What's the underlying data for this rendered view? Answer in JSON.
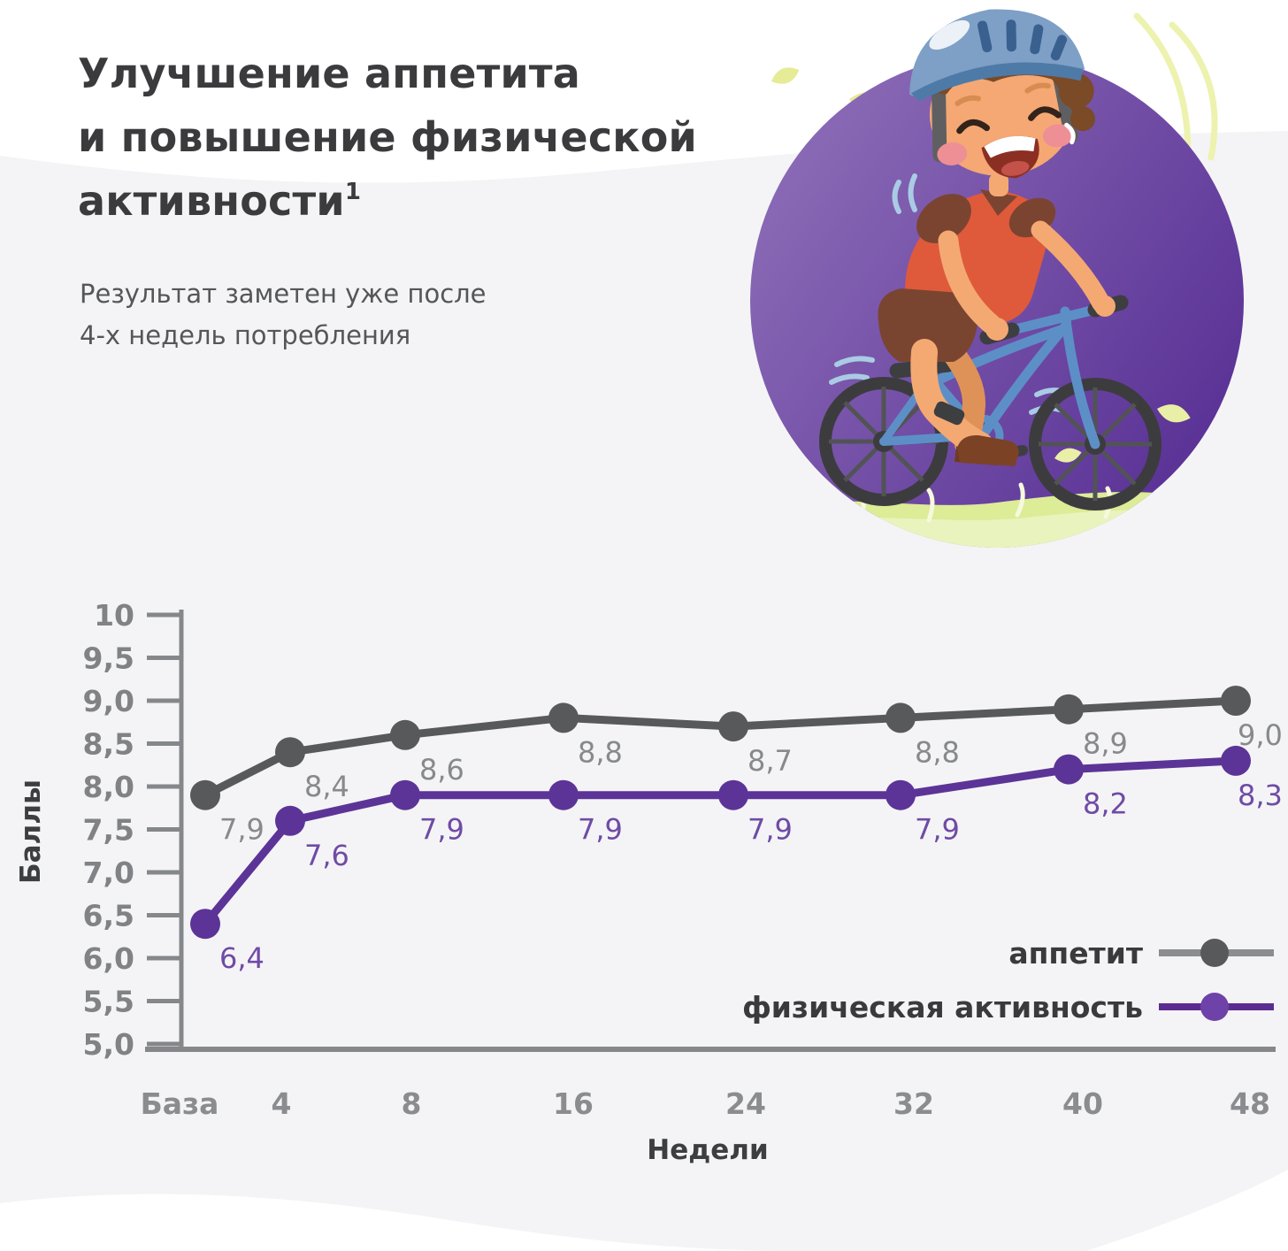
{
  "header": {
    "title": "Улучшение аппетита\nи повышение физической\nактивности",
    "title_superscript": "1",
    "subtitle": "Результат заметен уже после\n4-х недель потребления"
  },
  "illustration": {
    "name": "boy-riding-bicycle-in-purple-circle",
    "circle_color_light": "#9273bb",
    "circle_color_dark": "#5a3296"
  },
  "chart_data": {
    "type": "line",
    "title": "",
    "categories": [
      "База",
      "4",
      "8",
      "16",
      "24",
      "32",
      "40",
      "48"
    ],
    "series": [
      {
        "name": "аппетит",
        "color": "#58595b",
        "label_color": "#87898c",
        "legend_line_color": "#8b8d90",
        "legend_marker_color": "#58595b",
        "values": [
          7.9,
          8.4,
          8.6,
          8.8,
          8.7,
          8.8,
          8.9,
          9.0
        ],
        "value_labels": [
          "7,9",
          "8,4",
          "8,6",
          "8,8",
          "8,7",
          "8,8",
          "8,9",
          "9,0"
        ]
      },
      {
        "name": "физическая активность",
        "color": "#5c3497",
        "label_color": "#6f4ba5",
        "legend_line_color": "#5b2d91",
        "legend_marker_color": "#6e42a8",
        "values": [
          6.4,
          7.6,
          7.9,
          7.9,
          7.9,
          7.9,
          8.2,
          8.3
        ],
        "value_labels": [
          "6,4",
          "7,6",
          "7,9",
          "7,9",
          "7,9",
          "7,9",
          "8,2",
          "8,3"
        ]
      }
    ],
    "xlabel": "Недели",
    "ylabel": "Баллы",
    "ylim": [
      5.0,
      10.0
    ],
    "ytick_step": 0.5,
    "ytick_labels": [
      "10",
      "9,5",
      "9,0",
      "8,5",
      "8,0",
      "7,5",
      "7,0",
      "6,5",
      "6,0",
      "5,5",
      "5,0"
    ],
    "grid": false,
    "legend_position": "bottom-right",
    "axis_color": "#85878a",
    "tick_label_color": "#808285",
    "axis_title_color": "#3d3e40"
  }
}
